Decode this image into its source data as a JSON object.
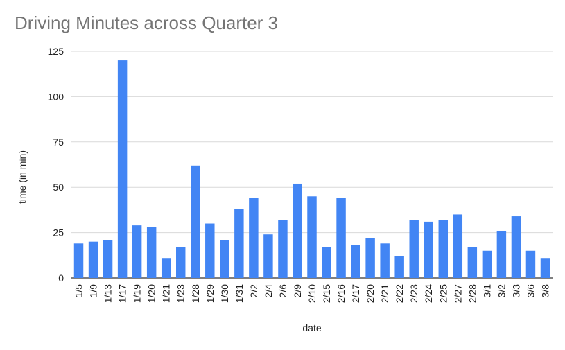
{
  "chart_data": {
    "type": "bar",
    "title": "Driving Minutes across Quarter 3",
    "xlabel": "date",
    "ylabel": "time (in min)",
    "ylim": [
      0,
      125
    ],
    "yticks": [
      0,
      25,
      50,
      75,
      100,
      125
    ],
    "grid": true,
    "legend": "none",
    "bar_color": "#4285f4",
    "gridline_color": "#d9d9d9",
    "categories": [
      "1/5",
      "1/9",
      "1/13",
      "1/17",
      "1/19",
      "1/20",
      "1/21",
      "1/23",
      "1/28",
      "1/29",
      "1/30",
      "1/31",
      "2/2",
      "2/4",
      "2/6",
      "2/9",
      "2/10",
      "2/15",
      "2/16",
      "2/17",
      "2/20",
      "2/21",
      "2/22",
      "2/23",
      "2/24",
      "2/25",
      "2/27",
      "2/28",
      "3/1",
      "3/2",
      "3/3",
      "3/6",
      "3/8"
    ],
    "values": [
      19,
      20,
      21,
      120,
      29,
      28,
      11,
      17,
      62,
      30,
      21,
      38,
      44,
      24,
      32,
      52,
      45,
      17,
      44,
      18,
      22,
      19,
      12,
      32,
      31,
      32,
      35,
      17,
      15,
      26,
      34,
      15,
      11
    ]
  }
}
